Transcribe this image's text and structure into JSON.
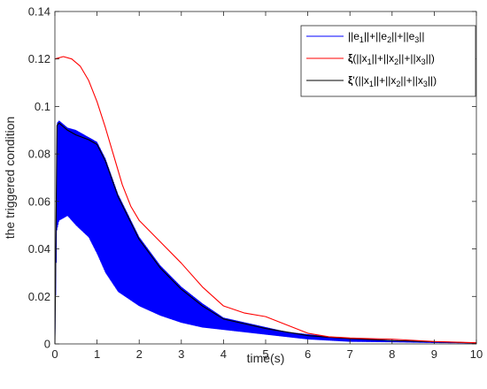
{
  "chart_data": {
    "type": "line",
    "xlabel": "time(s)",
    "ylabel": "the triggered condition",
    "xlim": [
      0,
      10
    ],
    "ylim": [
      0,
      0.14
    ],
    "x_ticks": [
      "0",
      "1",
      "2",
      "3",
      "4",
      "5",
      "6",
      "7",
      "8",
      "9",
      "10"
    ],
    "y_ticks": [
      "0",
      "0.02",
      "0.04",
      "0.06",
      "0.08",
      "0.1",
      "0.12",
      "0.14"
    ],
    "grid": false,
    "legend_position": "top-right",
    "series": [
      {
        "name": "||e1||+||e2||+||e3||",
        "legend_parts": [
          {
            "t": "||e"
          },
          {
            "t": "1",
            "sub": true
          },
          {
            "t": "||+||e"
          },
          {
            "t": "2",
            "sub": true
          },
          {
            "t": "||+||e"
          },
          {
            "t": "3",
            "sub": true
          },
          {
            "t": "||"
          }
        ],
        "color": "#0000ff",
        "style": "oscillating",
        "envelope_x": [
          0,
          0.05,
          0.1,
          0.3,
          0.5,
          0.8,
          1,
          1.2,
          1.5,
          2,
          2.5,
          3,
          3.5,
          4,
          4.5,
          5,
          5.5,
          6,
          6.5,
          7,
          8,
          9,
          10
        ],
        "envelope_upper": [
          0,
          0.093,
          0.094,
          0.091,
          0.09,
          0.087,
          0.085,
          0.078,
          0.063,
          0.045,
          0.033,
          0.024,
          0.017,
          0.011,
          0.009,
          0.007,
          0.005,
          0.004,
          0.003,
          0.0025,
          0.0015,
          0.001,
          0.0005
        ],
        "envelope_lower": [
          0,
          0.048,
          0.052,
          0.054,
          0.05,
          0.045,
          0.038,
          0.03,
          0.022,
          0.016,
          0.012,
          0.009,
          0.007,
          0.006,
          0.005,
          0.004,
          0.003,
          0.002,
          0.0015,
          0.001,
          0.0008,
          0.0005,
          0.0003
        ]
      },
      {
        "name": "ξ(||x1||+||x2||+||x3||)",
        "legend_parts": [
          {
            "t": "ξ",
            "bold": true
          },
          {
            "t": "(||x"
          },
          {
            "t": "1",
            "sub": true
          },
          {
            "t": "||+||x"
          },
          {
            "t": "2",
            "sub": true
          },
          {
            "t": "||+||x"
          },
          {
            "t": "3",
            "sub": true
          },
          {
            "t": "||)"
          }
        ],
        "color": "#ff0000",
        "style": "smooth",
        "x": [
          0,
          0.2,
          0.4,
          0.6,
          0.8,
          1,
          1.2,
          1.4,
          1.6,
          1.8,
          2,
          2.5,
          3,
          3.5,
          4,
          4.5,
          5,
          5.5,
          6,
          6.5,
          7,
          7.5,
          8,
          9,
          10
        ],
        "y": [
          0.12,
          0.121,
          0.12,
          0.117,
          0.111,
          0.102,
          0.091,
          0.079,
          0.067,
          0.058,
          0.052,
          0.043,
          0.034,
          0.024,
          0.016,
          0.013,
          0.0115,
          0.008,
          0.0045,
          0.003,
          0.0025,
          0.0022,
          0.002,
          0.001,
          0.0005
        ]
      },
      {
        "name": "ξ'(||x1||+||x2||+||x3||)",
        "legend_parts": [
          {
            "t": "ξ",
            "bold": true
          },
          {
            "t": "'(||x"
          },
          {
            "t": "1",
            "sub": true
          },
          {
            "t": "||+||x"
          },
          {
            "t": "2",
            "sub": true
          },
          {
            "t": "||+||x"
          },
          {
            "t": "3",
            "sub": true
          },
          {
            "t": "||)"
          }
        ],
        "color": "#000000",
        "style": "smooth",
        "x": [
          0,
          0.05,
          0.1,
          0.3,
          0.5,
          0.8,
          1,
          1.2,
          1.5,
          2,
          2.5,
          3,
          3.5,
          4,
          4.5,
          5,
          5.5,
          6,
          6.5,
          7,
          8,
          9,
          10
        ],
        "y": [
          0,
          0.092,
          0.093,
          0.09,
          0.088,
          0.086,
          0.084,
          0.077,
          0.062,
          0.044,
          0.032,
          0.023,
          0.016,
          0.0105,
          0.0085,
          0.0065,
          0.005,
          0.0035,
          0.0028,
          0.0022,
          0.0014,
          0.0009,
          0.0004
        ]
      }
    ]
  }
}
